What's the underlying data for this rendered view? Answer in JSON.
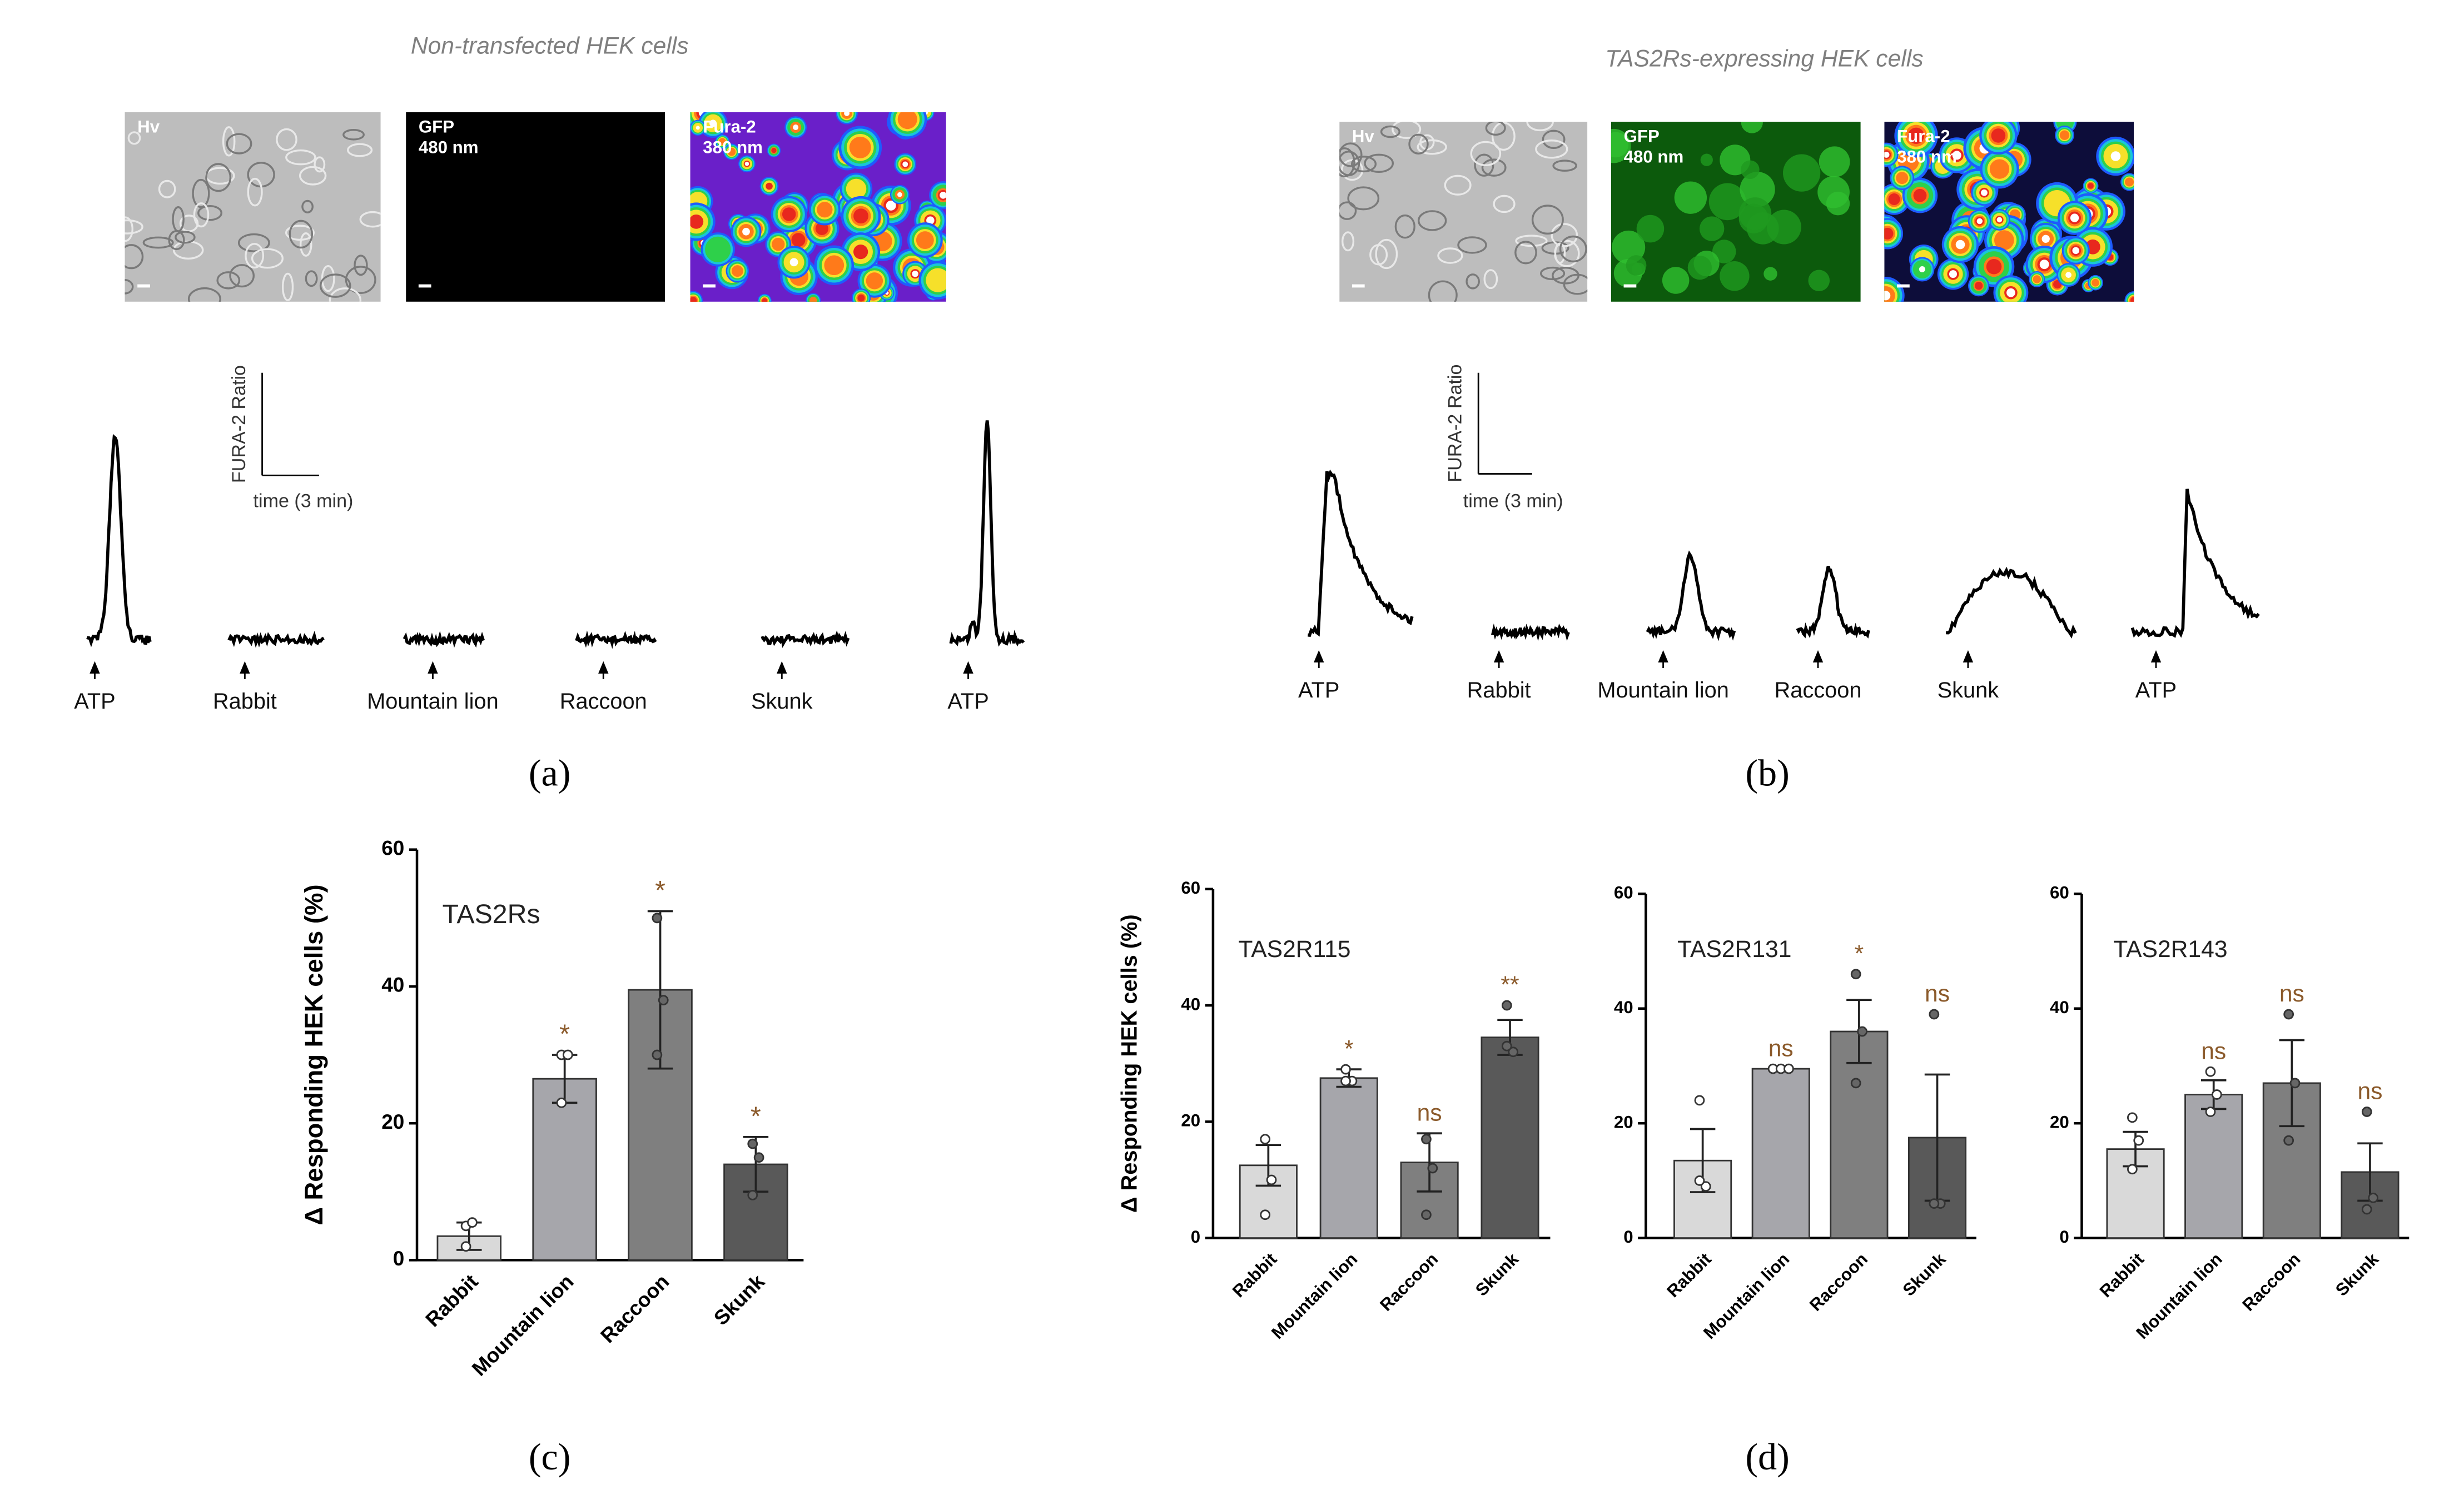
{
  "panels": {
    "a": {
      "title": "Non-transfected HEK cells",
      "images": [
        [
          "Hv"
        ],
        [
          "GFP",
          "480 nm"
        ],
        [
          "Fura-2",
          "380 nm"
        ]
      ],
      "scale_y": "FURA-2 Ratio",
      "scale_x": "time (3 min)",
      "stimuli": [
        "ATP",
        "Rabbit",
        "Mountain lion",
        "Raccoon",
        "Skunk",
        "ATP"
      ]
    },
    "b": {
      "title": "TAS2Rs-expressing HEK cells",
      "images": [
        [
          "Hv"
        ],
        [
          "GFP",
          "480 nm"
        ],
        [
          "Fura-2",
          "380 nm"
        ]
      ],
      "scale_y": "FURA-2 Ratio",
      "scale_x": "time (3 min)",
      "stimuli": [
        "ATP",
        "Rabbit",
        "Mountain lion",
        "Raccoon",
        "Skunk",
        "ATP"
      ]
    }
  },
  "panel_labels": [
    "(a)",
    "(b)",
    "(c)",
    "(d)"
  ],
  "chart_data": [
    {
      "type": "bar",
      "annotation": "TAS2Rs",
      "y_label": "Δ Responding HEK cells (%)",
      "categories": [
        "Rabbit",
        "Mountain lion",
        "Raccoon",
        "Skunk"
      ],
      "values": [
        3.5,
        26.5,
        39.5,
        14
      ],
      "errors": [
        2,
        3.5,
        11.5,
        4
      ],
      "points": [
        [
          5,
          5.5,
          2
        ],
        [
          30,
          30,
          23
        ],
        [
          50,
          38,
          30
        ],
        [
          17,
          15,
          9.5
        ]
      ],
      "significance": [
        null,
        "*",
        "*",
        "*"
      ],
      "colors": [
        "#d9d9d9",
        "#a6a6ab",
        "#7f7f7f",
        "#595959"
      ],
      "ylim": [
        0,
        60
      ],
      "yticks": [
        0,
        20,
        40,
        60
      ]
    },
    {
      "type": "bar",
      "annotation": "TAS2R115",
      "y_label": "Δ Responding HEK cells (%)",
      "categories": [
        "Rabbit",
        "Mountain lion",
        "Raccoon",
        "Skunk"
      ],
      "values": [
        12.5,
        27.5,
        13,
        34.5
      ],
      "errors": [
        3.5,
        1.5,
        5,
        3
      ],
      "points": [
        [
          17,
          10,
          4
        ],
        [
          29,
          27,
          27
        ],
        [
          17,
          12,
          4
        ],
        [
          40,
          32,
          33
        ]
      ],
      "significance": [
        null,
        "*",
        "ns",
        "**"
      ],
      "colors": [
        "#d9d9d9",
        "#a6a6ab",
        "#7f7f7f",
        "#595959"
      ],
      "ylim": [
        0,
        60
      ],
      "yticks": [
        0,
        20,
        40,
        60
      ]
    },
    {
      "type": "bar",
      "annotation": "TAS2R131",
      "categories": [
        "Rabbit",
        "Mountain lion",
        "Raccoon",
        "Skunk"
      ],
      "values": [
        13.5,
        29.5,
        36,
        17.5
      ],
      "errors": [
        5.5,
        0,
        5.5,
        11
      ],
      "points": [
        [
          24,
          9,
          10
        ],
        [
          29.5,
          29.5,
          29.5
        ],
        [
          46,
          36,
          27
        ],
        [
          39,
          6,
          6
        ]
      ],
      "significance": [
        null,
        "ns",
        "*",
        "ns"
      ],
      "colors": [
        "#d9d9d9",
        "#a6a6ab",
        "#7f7f7f",
        "#595959"
      ],
      "ylim": [
        0,
        60
      ],
      "yticks": [
        0,
        20,
        40,
        60
      ]
    },
    {
      "type": "bar",
      "annotation": "TAS2R143",
      "categories": [
        "Rabbit",
        "Mountain lion",
        "Raccoon",
        "Skunk"
      ],
      "values": [
        15.5,
        25,
        27,
        11.5
      ],
      "errors": [
        3,
        2.5,
        7.5,
        5
      ],
      "points": [
        [
          21,
          17,
          12
        ],
        [
          29,
          25,
          22
        ],
        [
          39,
          27,
          17
        ],
        [
          22,
          7,
          5
        ]
      ],
      "significance": [
        null,
        "ns",
        "ns",
        "ns"
      ],
      "colors": [
        "#d9d9d9",
        "#a6a6ab",
        "#7f7f7f",
        "#595959"
      ],
      "ylim": [
        0,
        60
      ],
      "yticks": [
        0,
        20,
        40,
        60
      ]
    }
  ]
}
